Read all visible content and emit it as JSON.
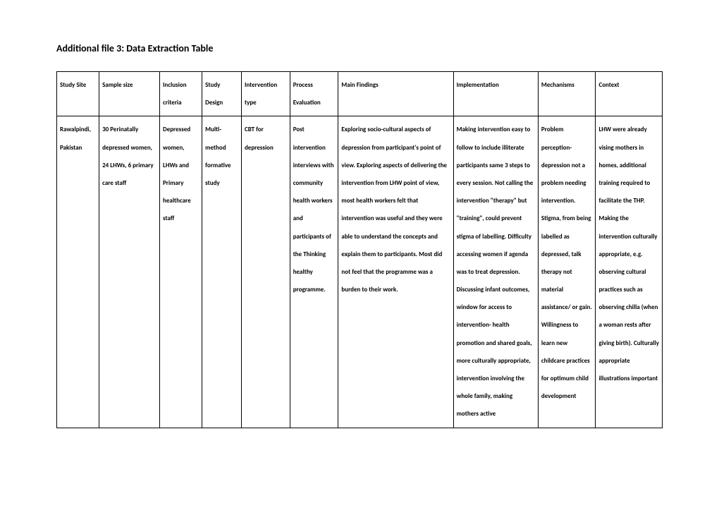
{
  "title": "Additional file 3: Data Extraction Table",
  "columns": [
    "Study Site",
    "Sample size",
    "Inclusion criteria",
    "Study Design",
    "Intervention type",
    "Process Evaluation",
    "Main Findings",
    "Implementation",
    "Mechanisms",
    "Context"
  ],
  "row": {
    "site": "Rawalpindi, Pakistan",
    "sample": "30 Perinatally depressed women, 24 LHWs, 6 primary care staff",
    "inclusion": "Depressed women, LHWs and Primary healthcare staff",
    "design": "Multi-method formative study",
    "intervention": "CBT for depression",
    "process": "Post intervention interviews with community health workers and participants of the Thinking healthy programme.",
    "findings": "Exploring socio-cultural aspects of depression from participant's point of view. Exploring aspects of delivering the intervention from LHW point of view, most health workers felt that intervention was useful and they were able to understand the concepts and explain them to participants. Most did not feel that the programme was a burden to their work.",
    "implementation": "Making intervention easy to follow to include illiterate participants same 3 steps to every session. Not calling the intervention \"therapy\" but \"training\", could prevent stigma of labelling. Difficulty accessing women if agenda was to treat depression. Discussing infant outcomes, window for access to intervention- health promotion and shared goals, more culturally appropriate, intervention involving the whole family, making mothers active",
    "mechanisms": "Problem perception- depression not a problem needing intervention. Stigma, from being labelled as depressed, talk therapy not material assistance/ or gain. Willingness to learn new childcare practices for optimum child development",
    "context": "LHW were already vising mothers in homes, additional training required to facilitate the THP. Making the intervention culturally appropriate, e.g. observing cultural practices such as observing chilla (when a woman rests after giving birth). Culturally appropriate illustrations important"
  }
}
